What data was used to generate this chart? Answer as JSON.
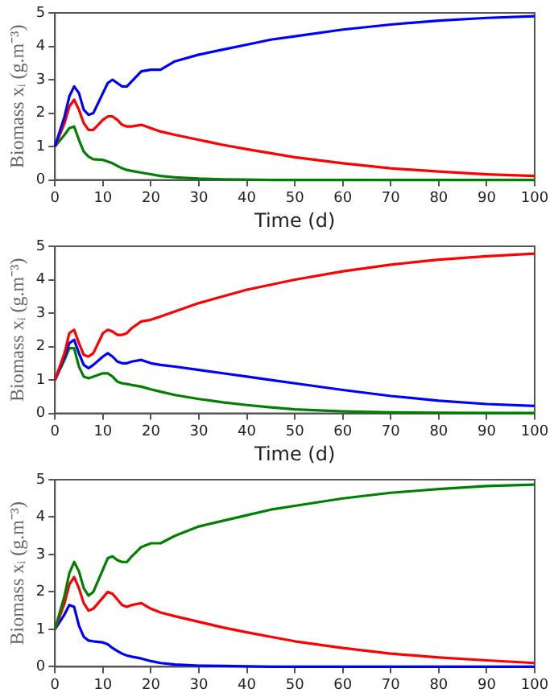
{
  "chart_data": [
    {
      "type": "line",
      "xlabel": "Time (d)",
      "ylabel": "Biomass xᵢ (g.m⁻³)",
      "xlim": [
        0,
        100
      ],
      "xticks": [
        0,
        10,
        20,
        30,
        40,
        50,
        60,
        70,
        80,
        90,
        100
      ],
      "ylim": [
        0,
        5
      ],
      "yticks": [
        0,
        1,
        2,
        3,
        4,
        5
      ],
      "grid": false,
      "legend": false,
      "marker": "none",
      "line_style": "solid",
      "x": [
        0,
        2,
        3,
        4,
        5,
        6,
        7,
        8,
        10,
        11,
        12,
        13,
        14,
        15,
        16,
        18,
        20,
        22,
        25,
        30,
        35,
        40,
        45,
        50,
        60,
        70,
        80,
        90,
        100
      ],
      "series": [
        {
          "color": "#0000ff",
          "values": [
            1,
            1.9,
            2.5,
            2.8,
            2.6,
            2.1,
            1.95,
            2.0,
            2.6,
            2.9,
            3.0,
            2.9,
            2.8,
            2.8,
            2.95,
            3.25,
            3.3,
            3.3,
            3.55,
            3.75,
            3.9,
            4.05,
            4.2,
            4.3,
            4.5,
            4.65,
            4.77,
            4.85,
            4.9
          ]
        },
        {
          "color": "#ff0000",
          "values": [
            1,
            1.7,
            2.2,
            2.4,
            2.1,
            1.7,
            1.5,
            1.5,
            1.8,
            1.9,
            1.9,
            1.8,
            1.65,
            1.6,
            1.6,
            1.65,
            1.55,
            1.45,
            1.35,
            1.2,
            1.05,
            0.92,
            0.8,
            0.68,
            0.5,
            0.35,
            0.25,
            0.17,
            0.12
          ]
        },
        {
          "color": "#008000",
          "values": [
            1,
            1.35,
            1.55,
            1.6,
            1.2,
            0.85,
            0.7,
            0.62,
            0.6,
            0.55,
            0.5,
            0.42,
            0.35,
            0.3,
            0.27,
            0.22,
            0.17,
            0.12,
            0.08,
            0.04,
            0.02,
            0.01,
            0,
            0,
            0,
            0,
            0,
            0,
            0
          ]
        }
      ]
    },
    {
      "type": "line",
      "xlabel": "Time (d)",
      "ylabel": "Biomass xᵢ (g.m⁻³)",
      "xlim": [
        0,
        100
      ],
      "xticks": [
        0,
        10,
        20,
        30,
        40,
        50,
        60,
        70,
        80,
        90,
        100
      ],
      "ylim": [
        0,
        5
      ],
      "yticks": [
        0,
        1,
        2,
        3,
        4,
        5
      ],
      "grid": false,
      "legend": false,
      "marker": "none",
      "line_style": "solid",
      "x": [
        0,
        2,
        3,
        4,
        5,
        6,
        7,
        8,
        10,
        11,
        12,
        13,
        14,
        15,
        16,
        18,
        20,
        22,
        25,
        30,
        35,
        40,
        45,
        50,
        60,
        70,
        80,
        90,
        100
      ],
      "series": [
        {
          "color": "#ff0000",
          "values": [
            1,
            1.8,
            2.4,
            2.5,
            2.1,
            1.75,
            1.7,
            1.8,
            2.4,
            2.5,
            2.45,
            2.35,
            2.35,
            2.4,
            2.55,
            2.75,
            2.8,
            2.9,
            3.05,
            3.3,
            3.5,
            3.7,
            3.85,
            4.0,
            4.25,
            4.45,
            4.6,
            4.7,
            4.78
          ]
        },
        {
          "color": "#0000ff",
          "values": [
            1,
            1.7,
            2.1,
            2.2,
            1.8,
            1.45,
            1.35,
            1.45,
            1.7,
            1.8,
            1.7,
            1.55,
            1.5,
            1.5,
            1.55,
            1.6,
            1.5,
            1.45,
            1.4,
            1.3,
            1.2,
            1.1,
            1.0,
            0.9,
            0.7,
            0.52,
            0.38,
            0.28,
            0.22
          ]
        },
        {
          "color": "#008000",
          "values": [
            1,
            1.6,
            1.95,
            1.95,
            1.4,
            1.1,
            1.05,
            1.1,
            1.2,
            1.2,
            1.1,
            0.95,
            0.9,
            0.88,
            0.85,
            0.8,
            0.72,
            0.65,
            0.55,
            0.43,
            0.33,
            0.25,
            0.18,
            0.12,
            0.06,
            0.03,
            0.02,
            0.01,
            0.01
          ]
        }
      ]
    },
    {
      "type": "line",
      "ylabel": "Biomass xᵢ (g.m⁻³)",
      "xlim": [
        0,
        100
      ],
      "xticks": [
        0,
        10,
        20,
        30,
        40,
        50,
        60,
        70,
        80,
        90,
        100
      ],
      "ylim": [
        0,
        5
      ],
      "yticks": [
        0,
        1,
        2,
        3,
        4,
        5
      ],
      "grid": false,
      "legend": false,
      "marker": "none",
      "line_style": "solid",
      "x": [
        0,
        2,
        3,
        4,
        5,
        6,
        7,
        8,
        10,
        11,
        12,
        13,
        14,
        15,
        16,
        18,
        20,
        22,
        25,
        30,
        35,
        40,
        45,
        50,
        60,
        70,
        80,
        90,
        100
      ],
      "series": [
        {
          "color": "#008000",
          "values": [
            1,
            1.9,
            2.5,
            2.8,
            2.55,
            2.1,
            1.9,
            2.0,
            2.6,
            2.9,
            2.95,
            2.85,
            2.8,
            2.8,
            2.95,
            3.2,
            3.3,
            3.3,
            3.5,
            3.75,
            3.9,
            4.05,
            4.2,
            4.3,
            4.5,
            4.65,
            4.75,
            4.83,
            4.87
          ]
        },
        {
          "color": "#ff0000",
          "values": [
            1,
            1.7,
            2.2,
            2.4,
            2.1,
            1.7,
            1.5,
            1.55,
            1.85,
            2.0,
            1.95,
            1.8,
            1.65,
            1.6,
            1.65,
            1.7,
            1.55,
            1.45,
            1.35,
            1.2,
            1.05,
            0.92,
            0.8,
            0.68,
            0.5,
            0.35,
            0.25,
            0.17,
            0.1
          ]
        },
        {
          "color": "#0000ff",
          "values": [
            1,
            1.4,
            1.65,
            1.6,
            1.1,
            0.8,
            0.7,
            0.68,
            0.65,
            0.6,
            0.5,
            0.42,
            0.35,
            0.3,
            0.27,
            0.22,
            0.15,
            0.1,
            0.06,
            0.03,
            0.02,
            0.01,
            0,
            0,
            0,
            0,
            0,
            0,
            0
          ]
        }
      ]
    }
  ]
}
